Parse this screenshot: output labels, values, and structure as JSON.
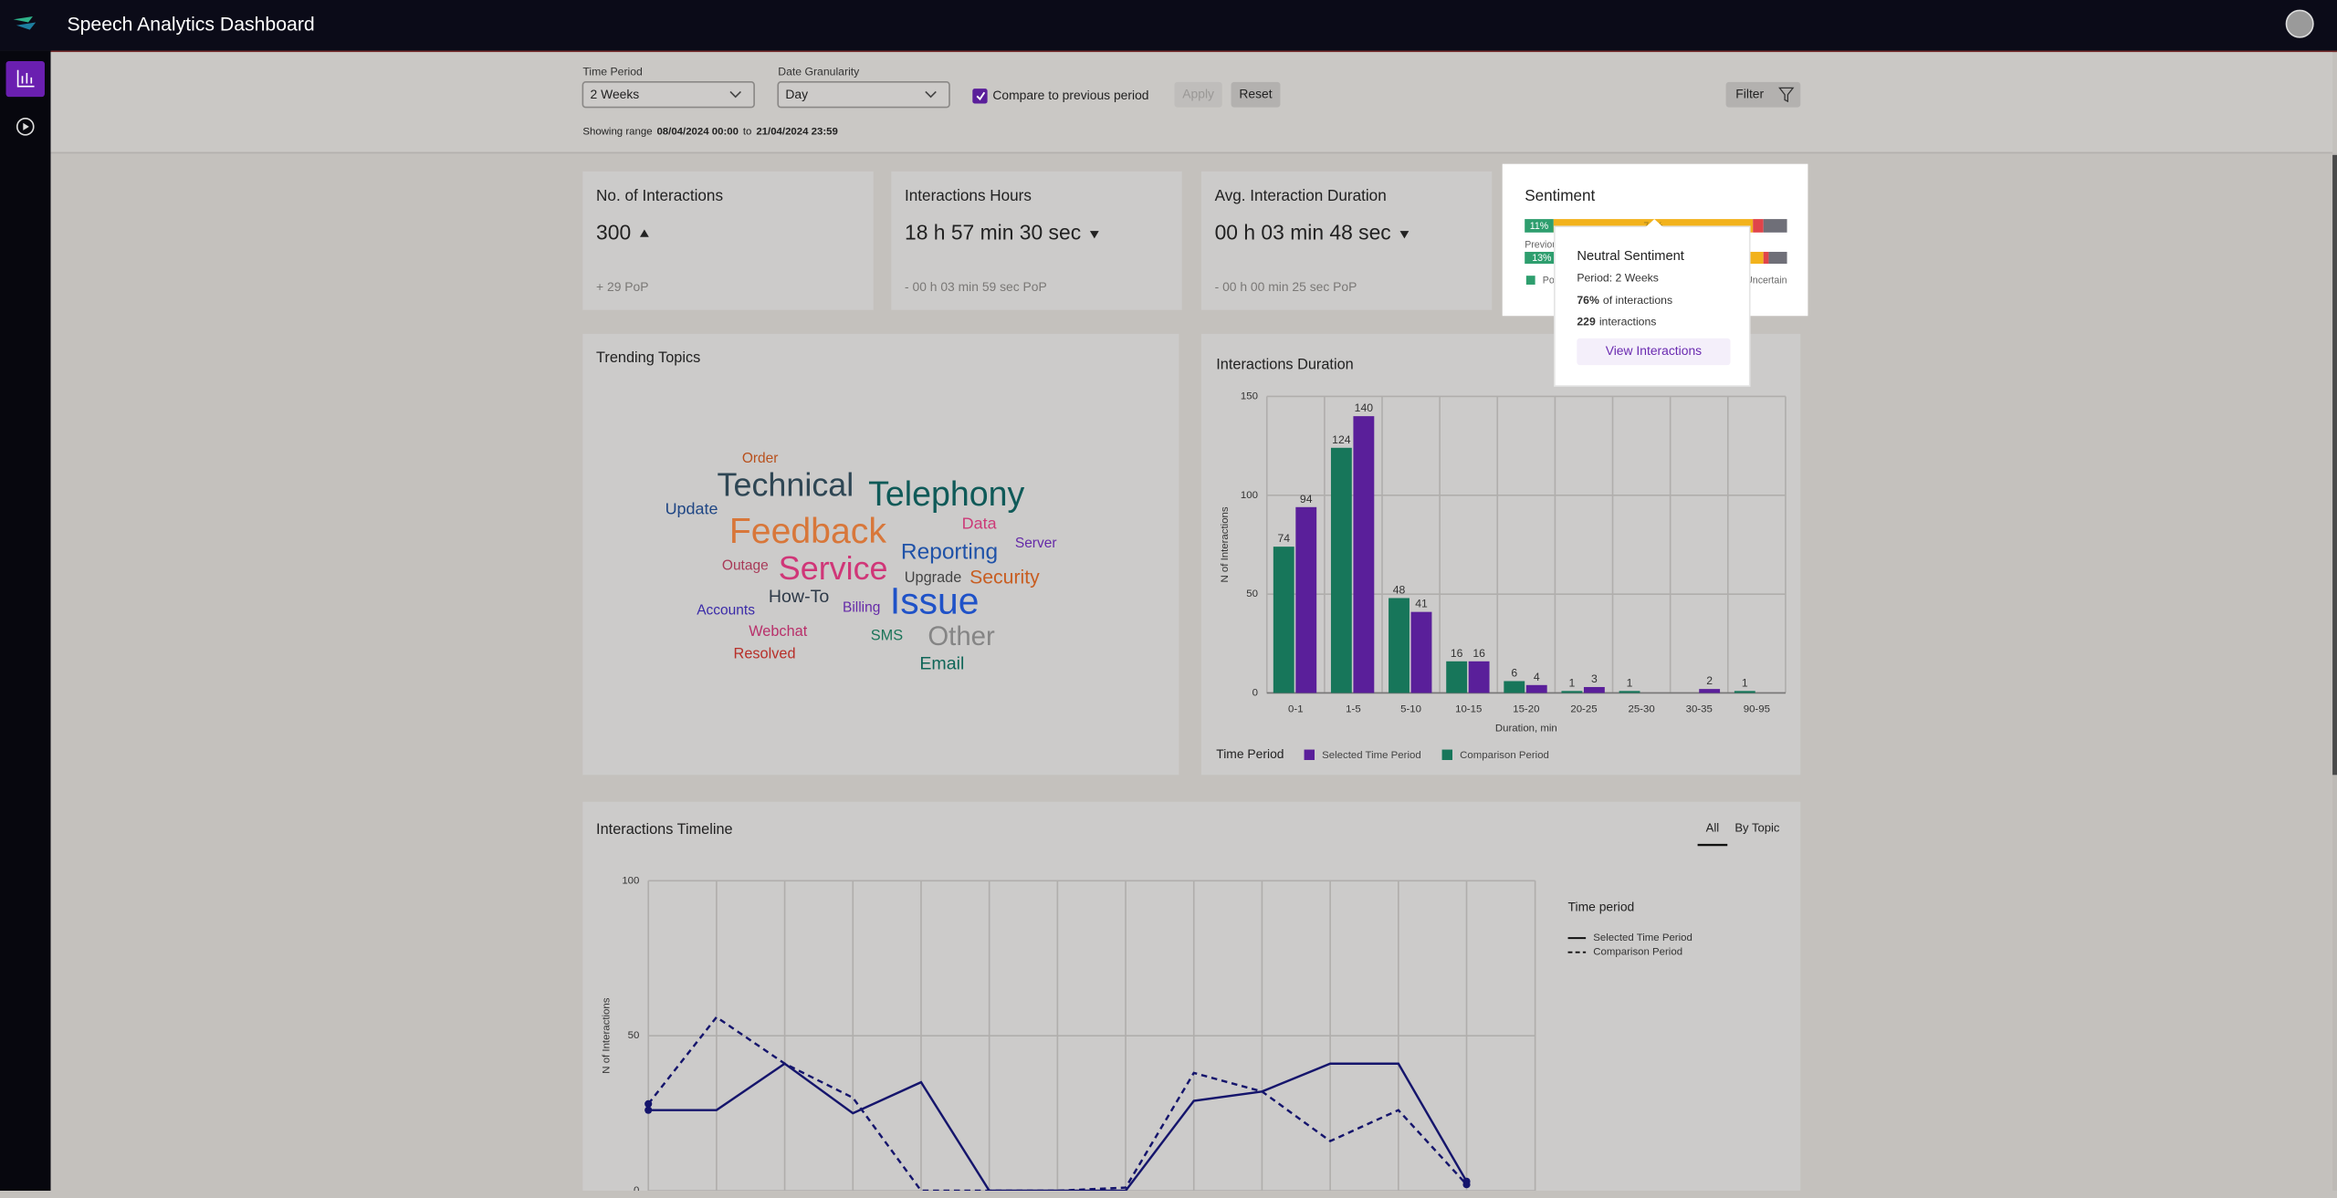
{
  "header": {
    "title": "Speech Analytics Dashboard"
  },
  "filters": {
    "time_period_label": "Time Period",
    "time_period": "2 Weeks",
    "granularity_label": "Date Granularity",
    "granularity": "Day",
    "compare": "Compare to previous period",
    "compare_checked": true,
    "apply": "Apply",
    "reset": "Reset",
    "filter": "Filter",
    "range_prefix": "Showing range",
    "range_start": "08/04/2024 00:00",
    "range_to": "to",
    "range_end": "21/04/2024 23:59"
  },
  "cards": [
    {
      "title": "No. of Interactions",
      "value": "300",
      "trend": "up",
      "change": "+ 29 PoP"
    },
    {
      "title": "Interactions Hours",
      "value": "18 h 57 min 30 sec",
      "trend": "down",
      "change": "- 00 h 03 min 59 sec PoP"
    },
    {
      "title": "Avg. Interaction Duration",
      "value": "00 h 03 min 48 sec",
      "trend": "down",
      "change": "- 00 h 00 min 25 sec PoP"
    }
  ],
  "sentiment": {
    "title": "Sentiment",
    "colors": [
      "#2e9e6e",
      "#f2b21c",
      "#e0444a",
      "#6f6f78"
    ],
    "current": [
      11,
      76,
      4,
      9
    ],
    "current_labels": [
      "11%",
      "76%"
    ],
    "previous_title": "Previous",
    "previous": [
      13,
      78,
      2,
      7
    ],
    "previous_labels": [
      "13%"
    ],
    "legend": [
      {
        "name": "Positive",
        "color": "#2e9e6e"
      },
      {
        "name": "Uncertain",
        "color": "#6f6f78"
      }
    ]
  },
  "tooltip": {
    "title": "Neutral Sentiment",
    "period": "Period: 2 Weeks",
    "share": "76%",
    "share_suffix": "of interactions",
    "count": "229",
    "count_suffix": "interactions",
    "button": "View Interactions"
  },
  "trending": {
    "title": "Trending Topics",
    "words": [
      {
        "text": "Order",
        "color": "#b8501c"
      },
      {
        "text": "Technical",
        "color": "#2e4654"
      },
      {
        "text": "Telephony",
        "color": "#0f5a58"
      },
      {
        "text": "Update",
        "color": "#1f4684"
      },
      {
        "text": "Feedback",
        "color": "#d8773a"
      },
      {
        "text": "Data",
        "color": "#cc3a78"
      },
      {
        "text": "Server",
        "color": "#652aa8"
      },
      {
        "text": "Reporting",
        "color": "#1f52a8"
      },
      {
        "text": "Outage",
        "color": "#a83a58"
      },
      {
        "text": "Service",
        "color": "#d03678"
      },
      {
        "text": "Upgrade",
        "color": "#444444"
      },
      {
        "text": "Security",
        "color": "#c85e22"
      },
      {
        "text": "How-To",
        "color": "#2e3a48"
      },
      {
        "text": "Accounts",
        "color": "#3a2aa8"
      },
      {
        "text": "Billing",
        "color": "#652aa8"
      },
      {
        "text": "Issue",
        "color": "#1f52c8"
      },
      {
        "text": "Webchat",
        "color": "#b8306a"
      },
      {
        "text": "SMS",
        "color": "#1a7458"
      },
      {
        "text": "Other",
        "color": "#858585"
      },
      {
        "text": "Resolved",
        "color": "#b8302a"
      },
      {
        "text": "Email",
        "color": "#0f6658"
      }
    ]
  },
  "chart_data": [
    {
      "type": "bar",
      "title": "Interactions Duration",
      "categories": [
        "0-1",
        "1-5",
        "5-10",
        "10-15",
        "15-20",
        "20-25",
        "25-30",
        "30-35",
        "90-95"
      ],
      "series": [
        {
          "name": "Selected Time Period",
          "color": "#5a1f9a",
          "values": [
            94,
            140,
            41,
            16,
            4,
            3,
            null,
            2,
            null
          ]
        },
        {
          "name": "Comparison Period",
          "color": "#17765a",
          "values": [
            74,
            124,
            48,
            16,
            6,
            1,
            1,
            null,
            1
          ]
        }
      ],
      "ylim": [
        0,
        150
      ],
      "yticks": [
        0,
        50,
        100,
        150
      ],
      "ylabel": "N of Interactions",
      "xlabel": "Duration, min",
      "legend_title": "Time Period",
      "grid": true,
      "data_labels": true
    },
    {
      "type": "line",
      "title": "Interactions Timeline",
      "tabs": [
        "All",
        "By Topic"
      ],
      "active_tab": 0,
      "categories": [
        null,
        null,
        null,
        null,
        null,
        null,
        null,
        null,
        null,
        null,
        null,
        null,
        null
      ],
      "series": [
        {
          "name": "Selected Time Period",
          "color": "#15156c",
          "dash": false,
          "values": [
            26,
            26,
            41,
            25,
            35,
            0,
            0,
            0,
            29,
            32,
            41,
            41,
            3
          ]
        },
        {
          "name": "Comparison Period",
          "color": "#15156c",
          "dash": true,
          "values": [
            28,
            56,
            41,
            30,
            0,
            0,
            0,
            1,
            38,
            32,
            16,
            26,
            2
          ]
        }
      ],
      "ylim": [
        0,
        100
      ],
      "yticks": [
        0,
        50,
        100
      ],
      "ylabel": "N of Interactions",
      "legend_title": "Time period",
      "grid": true
    }
  ]
}
